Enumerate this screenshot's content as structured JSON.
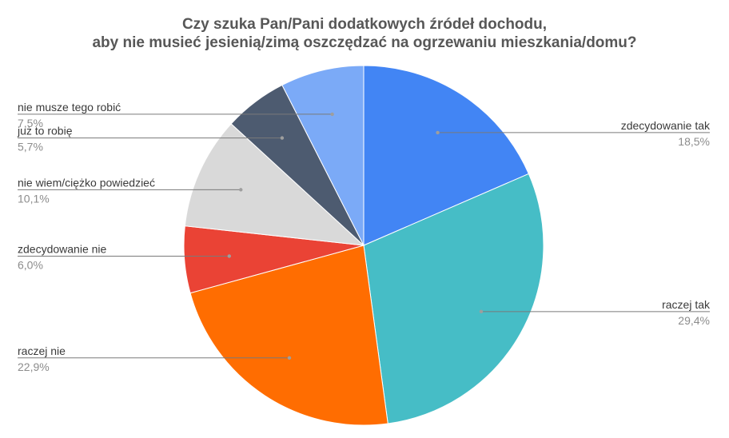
{
  "chart_data": {
    "type": "pie",
    "title": [
      "Czy szuka Pan/Pani dodatkowych źródeł dochodu,",
      "aby nie musieć jesienią/zimą oszczędzać na ogrzewaniu mieszkania/domu?"
    ],
    "start_angle_deg": 0,
    "direction": "clockwise",
    "slices": [
      {
        "label": "zdecydowanie tak",
        "value": 18.5,
        "display": "18,5%",
        "color": "#4285f4"
      },
      {
        "label": "raczej tak",
        "value": 29.4,
        "display": "29,4%",
        "color": "#46bdc6"
      },
      {
        "label": "raczej nie",
        "value": 22.9,
        "display": "22,9%",
        "color": "#ff6d01"
      },
      {
        "label": "zdecydowanie nie",
        "value": 6.0,
        "display": "6,0%",
        "color": "#ea4335"
      },
      {
        "label": "nie wiem/ciężko powiedzieć",
        "value": 10.1,
        "display": "10,1%",
        "color": "#d9d9d9"
      },
      {
        "label": "już to robię",
        "value": 5.7,
        "display": "5,7%",
        "color": "#4d5b70"
      },
      {
        "label": "nie musze tego robić",
        "value": 7.5,
        "display": "7,5%",
        "color": "#7baaf7"
      }
    ],
    "legend": "none",
    "labels_position": "outside-with-leader-lines"
  }
}
